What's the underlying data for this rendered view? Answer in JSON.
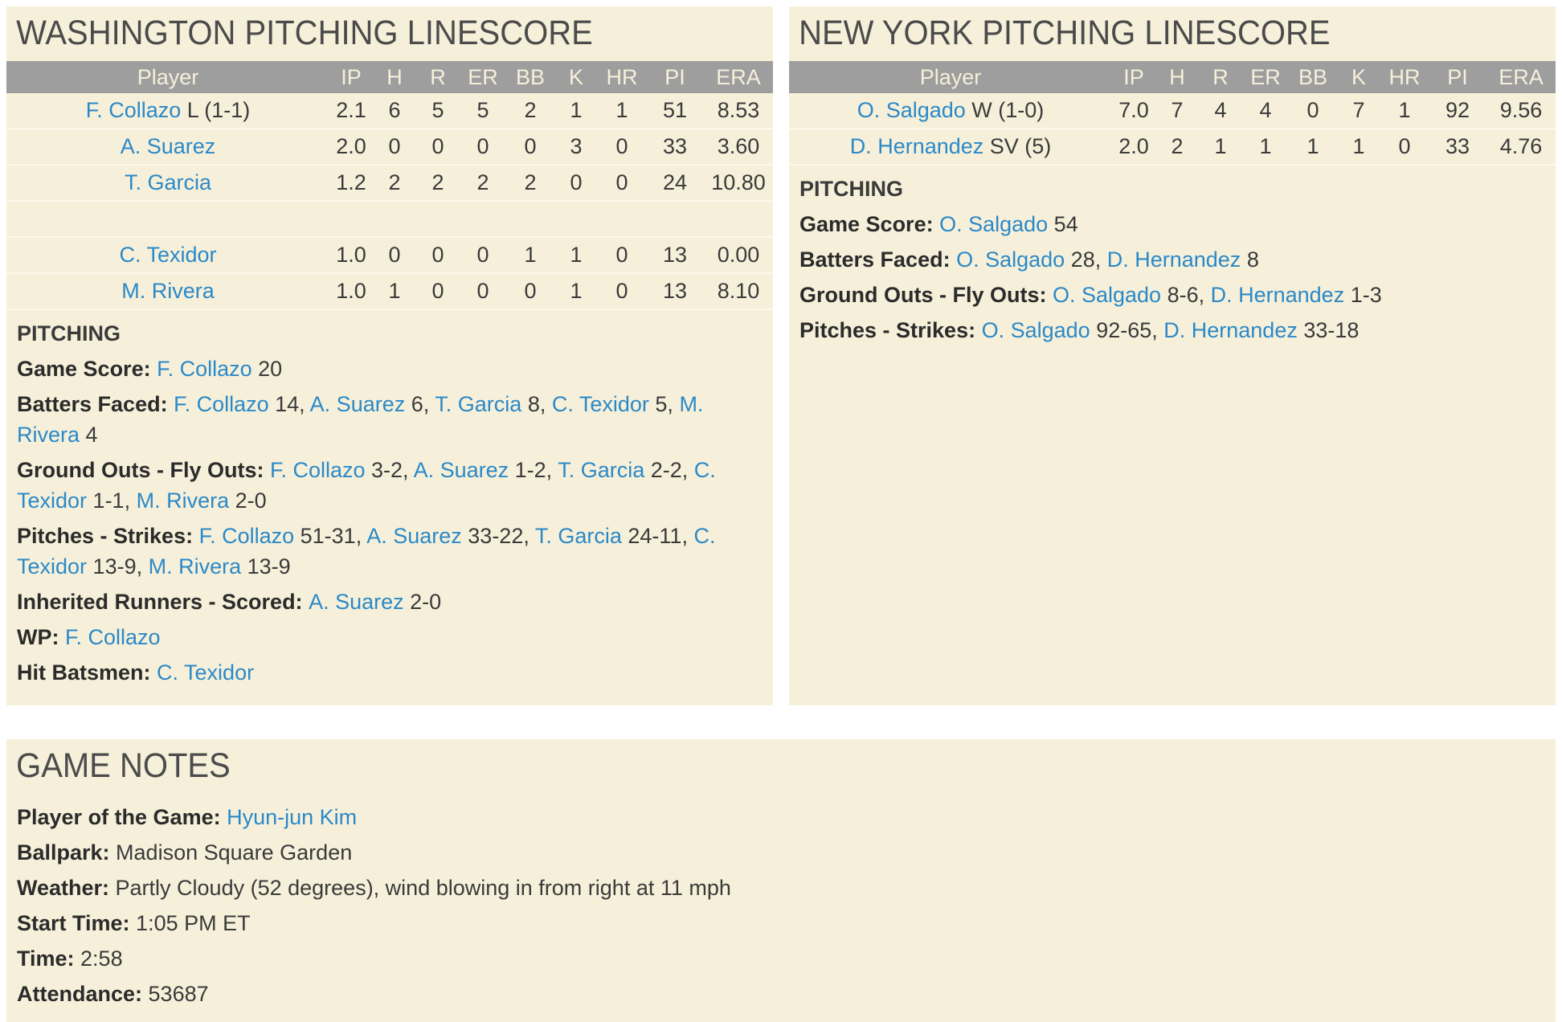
{
  "colors": {
    "panel_bg": "#f6f0da",
    "header_bg": "#9e9e9e",
    "header_text": "#f6f0da",
    "divider": "#fbf8ec",
    "title": "#4b4b4b",
    "text": "#3a3a3a",
    "label": "#2b2b2b",
    "link": "#2b89c8"
  },
  "washington": {
    "title": "WASHINGTON PITCHING LINESCORE",
    "table": {
      "headers": [
        "Player",
        "IP",
        "H",
        "R",
        "ER",
        "BB",
        "K",
        "HR",
        "PI",
        "ERA"
      ],
      "rows": [
        {
          "name": "F. Collazo",
          "suffix": "L (1-1)",
          "stats": [
            "2.1",
            "6",
            "5",
            "5",
            "2",
            "1",
            "1",
            "51",
            "8.53"
          ]
        },
        {
          "name": "A. Suarez",
          "suffix": "",
          "stats": [
            "2.0",
            "0",
            "0",
            "0",
            "0",
            "3",
            "0",
            "33",
            "3.60"
          ]
        },
        {
          "name": "T. Garcia",
          "suffix": "",
          "stats": [
            "1.2",
            "2",
            "2",
            "2",
            "2",
            "0",
            "0",
            "24",
            "10.80"
          ]
        },
        {
          "name": "",
          "suffix": "",
          "stats": [
            "",
            "",
            "",
            "",
            "",
            "",
            "",
            "",
            ""
          ]
        },
        {
          "name": "C. Texidor",
          "suffix": "",
          "stats": [
            "1.0",
            "0",
            "0",
            "0",
            "1",
            "1",
            "0",
            "13",
            "0.00"
          ]
        },
        {
          "name": "M. Rivera",
          "suffix": "",
          "stats": [
            "1.0",
            "1",
            "0",
            "0",
            "0",
            "1",
            "0",
            "13",
            "8.10"
          ]
        }
      ]
    },
    "notes_header": "PITCHING",
    "notes": [
      {
        "label": "Game Score:",
        "parts": [
          {
            "link": "F. Collazo"
          },
          {
            "text": " 20"
          }
        ]
      },
      {
        "label": "Batters Faced:",
        "parts": [
          {
            "link": "F. Collazo"
          },
          {
            "text": " 14, "
          },
          {
            "link": "A. Suarez"
          },
          {
            "text": " 6, "
          },
          {
            "link": "T. Garcia"
          },
          {
            "text": " 8, "
          },
          {
            "link": "C. Texidor"
          },
          {
            "text": " 5, "
          },
          {
            "link": "M. Rivera"
          },
          {
            "text": " 4"
          }
        ]
      },
      {
        "label": "Ground Outs - Fly Outs:",
        "parts": [
          {
            "link": "F. Collazo"
          },
          {
            "text": " 3-2, "
          },
          {
            "link": "A. Suarez"
          },
          {
            "text": " 1-2, "
          },
          {
            "link": "T. Garcia"
          },
          {
            "text": " 2-2, "
          },
          {
            "link": "C. Texidor"
          },
          {
            "text": " 1-1, "
          },
          {
            "link": "M. Rivera"
          },
          {
            "text": " 2-0"
          }
        ]
      },
      {
        "label": "Pitches - Strikes:",
        "parts": [
          {
            "link": "F. Collazo"
          },
          {
            "text": " 51-31, "
          },
          {
            "link": "A. Suarez"
          },
          {
            "text": " 33-22, "
          },
          {
            "link": "T. Garcia"
          },
          {
            "text": " 24-11, "
          },
          {
            "link": "C. Texidor"
          },
          {
            "text": " 13-9, "
          },
          {
            "link": "M. Rivera"
          },
          {
            "text": " 13-9"
          }
        ]
      },
      {
        "label": "Inherited Runners - Scored:",
        "parts": [
          {
            "link": "A. Suarez"
          },
          {
            "text": " 2-0"
          }
        ]
      },
      {
        "label": "WP:",
        "parts": [
          {
            "link": "F. Collazo"
          }
        ]
      },
      {
        "label": "Hit Batsmen:",
        "parts": [
          {
            "link": "C. Texidor"
          }
        ]
      }
    ]
  },
  "newyork": {
    "title": "NEW YORK PITCHING LINESCORE",
    "table": {
      "headers": [
        "Player",
        "IP",
        "H",
        "R",
        "ER",
        "BB",
        "K",
        "HR",
        "PI",
        "ERA"
      ],
      "rows": [
        {
          "name": "O. Salgado",
          "suffix": "W (1-0)",
          "stats": [
            "7.0",
            "7",
            "4",
            "4",
            "0",
            "7",
            "1",
            "92",
            "9.56"
          ]
        },
        {
          "name": "D. Hernandez",
          "suffix": "SV (5)",
          "stats": [
            "2.0",
            "2",
            "1",
            "1",
            "1",
            "1",
            "0",
            "33",
            "4.76"
          ]
        }
      ]
    },
    "notes_header": "PITCHING",
    "notes": [
      {
        "label": "Game Score:",
        "parts": [
          {
            "link": "O. Salgado"
          },
          {
            "text": " 54"
          }
        ]
      },
      {
        "label": "Batters Faced:",
        "parts": [
          {
            "link": "O. Salgado"
          },
          {
            "text": " 28, "
          },
          {
            "link": "D. Hernandez"
          },
          {
            "text": " 8"
          }
        ]
      },
      {
        "label": "Ground Outs - Fly Outs:",
        "parts": [
          {
            "link": "O. Salgado"
          },
          {
            "text": " 8-6, "
          },
          {
            "link": "D. Hernandez"
          },
          {
            "text": " 1-3"
          }
        ]
      },
      {
        "label": "Pitches - Strikes:",
        "parts": [
          {
            "link": "O. Salgado"
          },
          {
            "text": " 92-65, "
          },
          {
            "link": "D. Hernandez"
          },
          {
            "text": " 33-18"
          }
        ]
      }
    ]
  },
  "game_notes": {
    "title": "GAME NOTES",
    "notes": [
      {
        "label": "Player of the Game:",
        "parts": [
          {
            "link": "Hyun-jun Kim"
          }
        ]
      },
      {
        "label": "Ballpark:",
        "parts": [
          {
            "text": "Madison Square Garden"
          }
        ]
      },
      {
        "label": "Weather:",
        "parts": [
          {
            "text": "Partly Cloudy (52 degrees), wind blowing in from right at 11 mph"
          }
        ]
      },
      {
        "label": "Start Time:",
        "parts": [
          {
            "text": "1:05 PM ET"
          }
        ]
      },
      {
        "label": "Time:",
        "parts": [
          {
            "text": "2:58"
          }
        ]
      },
      {
        "label": "Attendance:",
        "parts": [
          {
            "text": "53687"
          }
        ]
      }
    ]
  }
}
